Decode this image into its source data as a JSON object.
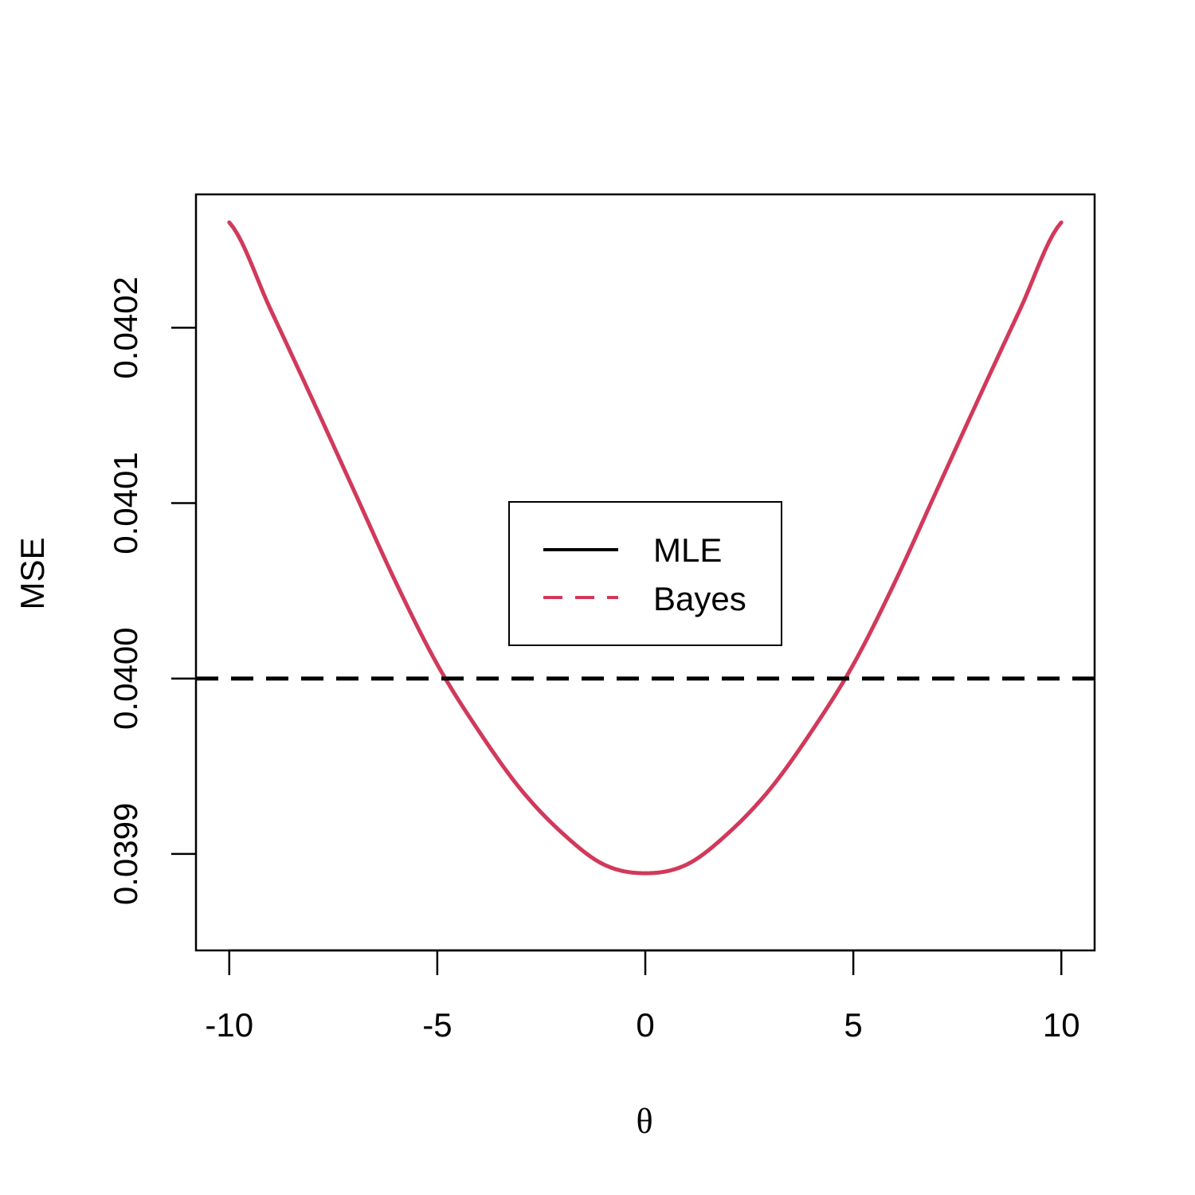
{
  "chart_data": {
    "type": "line",
    "title": "",
    "xlabel": "θ",
    "ylabel": "MSE",
    "xlim": [
      -10.8,
      10.8
    ],
    "ylim": [
      0.039845,
      0.040276
    ],
    "x_ticks": [
      -10,
      -5,
      0,
      5,
      10
    ],
    "x_tick_labels": [
      "-10",
      "-5",
      "0",
      "5",
      "10"
    ],
    "y_ticks": [
      0.0399,
      0.04,
      0.0401,
      0.0402
    ],
    "y_tick_labels": [
      "0.0399",
      "0.0400",
      "0.0401",
      "0.0402"
    ],
    "grid": false,
    "legend_position": "center",
    "series": [
      {
        "name": "MLE",
        "color": "#000000",
        "style": "dashed-in-plot",
        "legend_style": "solid",
        "x": [
          -10.8,
          10.8
        ],
        "y": [
          0.04,
          0.04
        ]
      },
      {
        "name": "Bayes",
        "color": "#D1395A",
        "style": "solid-in-plot",
        "legend_style": "dashed",
        "x": [
          -10,
          -9,
          -8,
          -7,
          -6,
          -5,
          -4,
          -3,
          -2,
          -1,
          0,
          1,
          2,
          3,
          4,
          5,
          6,
          7,
          8,
          9,
          10
        ],
        "y": [
          0.04026,
          0.04021,
          0.040159,
          0.040107,
          0.040055,
          0.040008,
          0.03997,
          0.039937,
          0.039912,
          0.039894,
          0.039889,
          0.039894,
          0.039912,
          0.039937,
          0.03997,
          0.040008,
          0.040055,
          0.040107,
          0.040159,
          0.04021,
          0.04026
        ]
      }
    ]
  }
}
